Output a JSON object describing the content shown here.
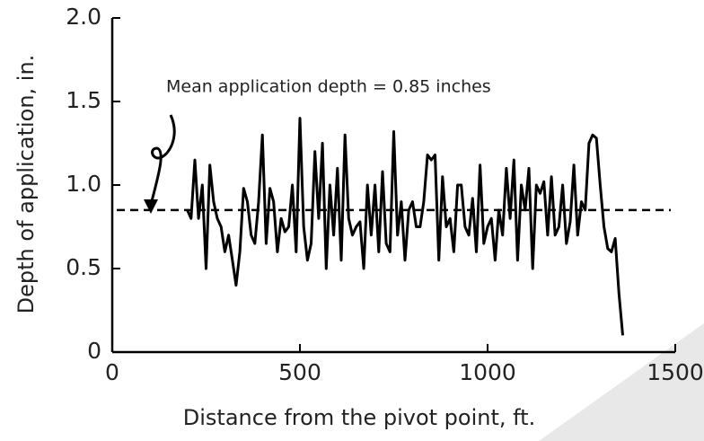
{
  "chart_data": {
    "type": "line",
    "x_label": "Distance from the pivot point, ft.",
    "y_label": "Depth of application, in.",
    "annotation": "Mean application depth = 0.85 inches",
    "mean": 0.85,
    "xlim": [
      0,
      1500
    ],
    "xticks": [
      0,
      500,
      1000,
      1500
    ],
    "ylim": [
      0,
      2.0
    ],
    "yticks": [
      0,
      {
        "value": 0.5,
        "label": "0.5"
      },
      {
        "value": 1.0,
        "label": "1.0"
      },
      {
        "value": 1.5,
        "label": "1.5"
      },
      {
        "value": 2.0,
        "label": "2.0"
      }
    ],
    "color": "#000000",
    "x": [
      200,
      210,
      220,
      230,
      240,
      250,
      260,
      270,
      280,
      290,
      300,
      310,
      320,
      330,
      340,
      350,
      360,
      370,
      380,
      390,
      400,
      410,
      420,
      430,
      440,
      450,
      460,
      470,
      480,
      490,
      500,
      510,
      520,
      530,
      540,
      550,
      560,
      570,
      580,
      590,
      600,
      610,
      620,
      630,
      640,
      650,
      660,
      670,
      680,
      690,
      700,
      710,
      720,
      730,
      740,
      750,
      760,
      770,
      780,
      790,
      800,
      810,
      820,
      830,
      840,
      850,
      860,
      870,
      880,
      890,
      900,
      910,
      920,
      930,
      940,
      950,
      960,
      970,
      980,
      990,
      1000,
      1010,
      1020,
      1030,
      1040,
      1050,
      1060,
      1070,
      1080,
      1090,
      1100,
      1110,
      1120,
      1130,
      1140,
      1150,
      1160,
      1170,
      1180,
      1190,
      1200,
      1210,
      1220,
      1230,
      1240,
      1250,
      1260,
      1270,
      1280,
      1290,
      1300,
      1310,
      1320,
      1330,
      1340,
      1350,
      1360
    ],
    "values": [
      0.85,
      0.8,
      1.15,
      0.8,
      1.0,
      0.5,
      1.12,
      0.9,
      0.8,
      0.75,
      0.6,
      0.7,
      0.55,
      0.4,
      0.6,
      0.98,
      0.9,
      0.7,
      0.65,
      0.9,
      1.3,
      0.65,
      0.98,
      0.9,
      0.6,
      0.8,
      0.72,
      0.75,
      1.0,
      0.6,
      1.4,
      0.75,
      0.55,
      0.65,
      1.2,
      0.8,
      1.25,
      0.5,
      1.0,
      0.7,
      1.1,
      0.55,
      1.3,
      0.8,
      0.7,
      0.75,
      0.78,
      0.5,
      1.0,
      0.7,
      1.0,
      0.6,
      1.08,
      0.65,
      0.6,
      1.32,
      0.7,
      0.9,
      0.55,
      0.85,
      0.9,
      0.75,
      0.75,
      0.9,
      1.18,
      1.15,
      1.18,
      0.55,
      1.05,
      0.75,
      0.8,
      0.6,
      1.0,
      1.0,
      0.75,
      0.7,
      0.92,
      0.6,
      1.12,
      0.65,
      0.75,
      0.8,
      0.55,
      0.85,
      0.7,
      1.1,
      0.8,
      1.15,
      0.55,
      1.0,
      0.85,
      1.1,
      0.5,
      1.0,
      0.95,
      1.02,
      0.7,
      1.05,
      0.7,
      0.75,
      1.0,
      0.65,
      0.78,
      1.12,
      0.7,
      0.9,
      0.85,
      1.25,
      1.3,
      1.28,
      1.0,
      0.75,
      0.62,
      0.6,
      0.68,
      0.35,
      0.1
    ]
  }
}
